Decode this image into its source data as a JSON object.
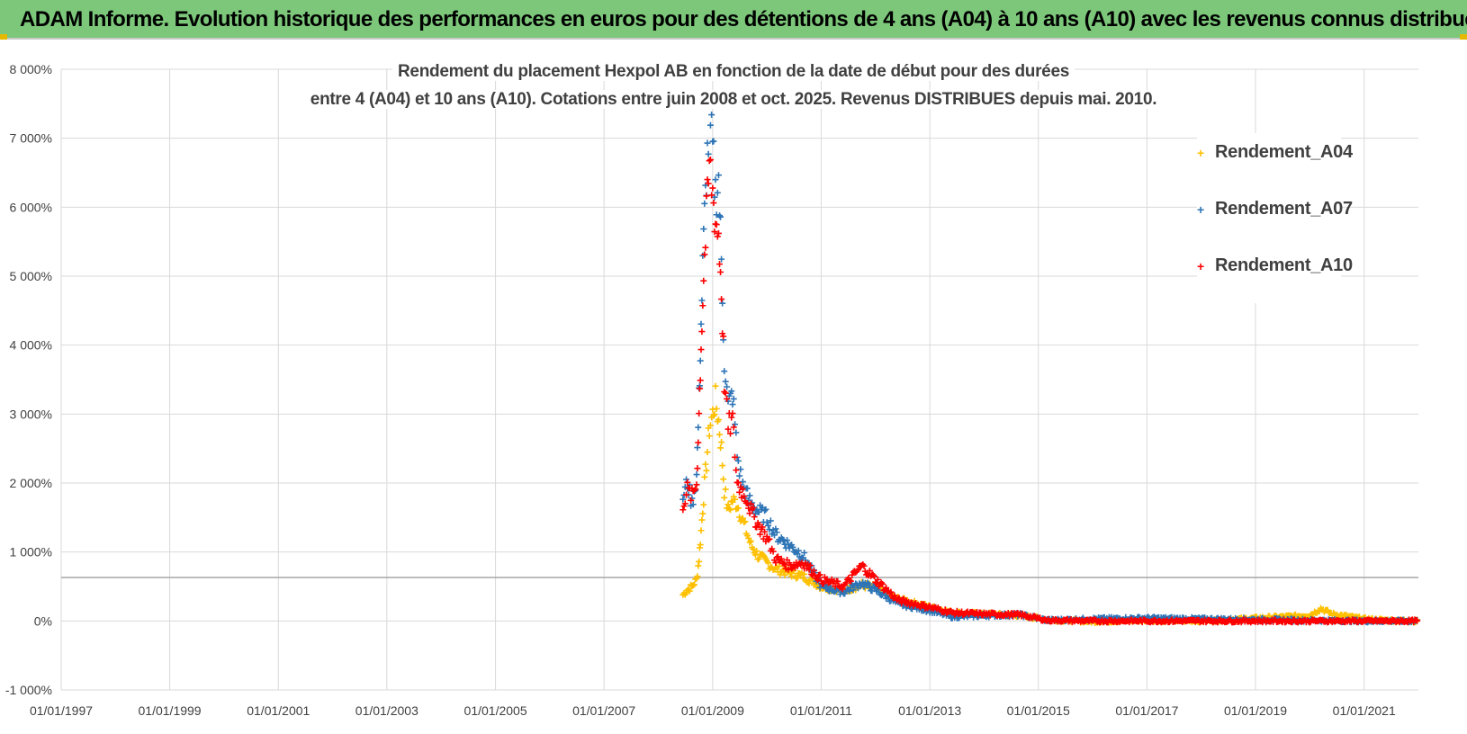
{
  "banner": {
    "title": "ADAM Informe. Evolution historique des performances en euros pour des détentions de 4 ans (A04) à 10 ans (A10) avec les revenus connus distribués"
  },
  "chart_data": {
    "type": "scatter",
    "title_line1": "Rendement du placement Hexpol AB en fonction de la date de début pour des durées",
    "title_line2": "entre 4 (A04) et 10 ans (A10). Cotations entre juin 2008 et oct. 2025. Revenus DISTRIBUES depuis mai. 2010.",
    "xlim": [
      "1997-01-01",
      "2022-01-01"
    ],
    "ylim": [
      -1000,
      8000
    ],
    "y_ticks": [
      -1000,
      0,
      1000,
      2000,
      3000,
      4000,
      5000,
      6000,
      7000,
      8000
    ],
    "y_tick_labels": [
      "-1 000%",
      "0%",
      "1 000%",
      "2 000%",
      "3 000%",
      "4 000%",
      "5 000%",
      "6 000%",
      "7 000%",
      "8 000%"
    ],
    "x_tick_labels": [
      "01/01/1997",
      "01/01/1999",
      "01/01/2001",
      "01/01/2003",
      "01/01/2005",
      "01/01/2007",
      "01/01/2009",
      "01/01/2011",
      "01/01/2013",
      "01/01/2015",
      "01/01/2017",
      "01/01/2019",
      "01/01/2021"
    ],
    "x_ticks": [
      "1997-01-01",
      "1999-01-01",
      "2001-01-01",
      "2003-01-01",
      "2005-01-01",
      "2007-01-01",
      "2009-01-01",
      "2011-01-01",
      "2013-01-01",
      "2015-01-01",
      "2017-01-01",
      "2019-01-01",
      "2021-01-01"
    ],
    "grid": true,
    "reference_line_y": 630,
    "legend_position": "top-right",
    "series": [
      {
        "name": "Rendement_A04",
        "color": "#ffc000",
        "marker": "plus",
        "points": [
          [
            "2008-06-15",
            380
          ],
          [
            "2008-07-15",
            450
          ],
          [
            "2008-08-15",
            500
          ],
          [
            "2008-09-15",
            600
          ],
          [
            "2008-10-01",
            900
          ],
          [
            "2008-10-15",
            1300
          ],
          [
            "2008-11-01",
            1800
          ],
          [
            "2008-11-20",
            2300
          ],
          [
            "2008-12-10",
            2800
          ],
          [
            "2009-01-01",
            3000
          ],
          [
            "2009-01-20",
            3200
          ],
          [
            "2009-02-10",
            2900
          ],
          [
            "2009-03-01",
            2500
          ],
          [
            "2009-03-20",
            1900
          ],
          [
            "2009-04-15",
            1600
          ],
          [
            "2009-05-15",
            1750
          ],
          [
            "2009-06-15",
            1700
          ],
          [
            "2009-07-15",
            1500
          ],
          [
            "2009-08-15",
            1300
          ],
          [
            "2009-09-15",
            1100
          ],
          [
            "2009-11-01",
            950
          ],
          [
            "2010-01-01",
            850
          ],
          [
            "2010-03-01",
            750
          ],
          [
            "2010-06-01",
            700
          ],
          [
            "2010-09-01",
            650
          ],
          [
            "2011-01-01",
            500
          ],
          [
            "2011-06-01",
            450
          ],
          [
            "2011-10-01",
            520
          ],
          [
            "2012-01-01",
            480
          ],
          [
            "2012-06-01",
            320
          ],
          [
            "2013-01-01",
            200
          ],
          [
            "2013-06-01",
            120
          ],
          [
            "2014-01-01",
            100
          ],
          [
            "2014-09-01",
            80
          ],
          [
            "2015-03-01",
            20
          ],
          [
            "2016-01-01",
            -10
          ],
          [
            "2017-01-01",
            10
          ],
          [
            "2018-01-01",
            0
          ],
          [
            "2019-01-01",
            40
          ],
          [
            "2019-07-01",
            60
          ],
          [
            "2020-01-01",
            80
          ],
          [
            "2020-03-15",
            180
          ],
          [
            "2020-06-01",
            100
          ],
          [
            "2021-01-01",
            30
          ],
          [
            "2021-06-01",
            10
          ],
          [
            "2022-01-01",
            0
          ]
        ]
      },
      {
        "name": "Rendement_A07",
        "color": "#2e75b6",
        "marker": "plus",
        "points": [
          [
            "2008-06-15",
            1800
          ],
          [
            "2008-07-15",
            2000
          ],
          [
            "2008-08-15",
            1700
          ],
          [
            "2008-09-15",
            2100
          ],
          [
            "2008-10-01",
            3200
          ],
          [
            "2008-10-15",
            4300
          ],
          [
            "2008-11-01",
            5500
          ],
          [
            "2008-11-20",
            6500
          ],
          [
            "2008-12-10",
            7200
          ],
          [
            "2009-01-01",
            6800
          ],
          [
            "2009-01-20",
            6200
          ],
          [
            "2009-02-10",
            6400
          ],
          [
            "2009-03-01",
            5200
          ],
          [
            "2009-03-20",
            3800
          ],
          [
            "2009-04-15",
            3100
          ],
          [
            "2009-05-15",
            3300
          ],
          [
            "2009-06-15",
            2400
          ],
          [
            "2009-07-15",
            2000
          ],
          [
            "2009-08-15",
            1850
          ],
          [
            "2009-09-15",
            1700
          ],
          [
            "2009-11-01",
            1600
          ],
          [
            "2010-01-01",
            1500
          ],
          [
            "2010-03-01",
            1250
          ],
          [
            "2010-06-01",
            1100
          ],
          [
            "2010-09-01",
            950
          ],
          [
            "2011-01-01",
            500
          ],
          [
            "2011-06-01",
            420
          ],
          [
            "2011-10-01",
            550
          ],
          [
            "2012-01-01",
            450
          ],
          [
            "2012-06-01",
            250
          ],
          [
            "2013-01-01",
            150
          ],
          [
            "2013-06-01",
            60
          ],
          [
            "2014-01-01",
            80
          ],
          [
            "2014-09-01",
            90
          ],
          [
            "2015-03-01",
            10
          ],
          [
            "2016-01-01",
            30
          ],
          [
            "2017-01-01",
            40
          ],
          [
            "2018-01-01",
            30
          ],
          [
            "2019-01-01",
            20
          ],
          [
            "2020-01-01",
            10
          ],
          [
            "2021-01-01",
            0
          ],
          [
            "2022-01-01",
            0
          ]
        ]
      },
      {
        "name": "Rendement_A10",
        "color": "#ff0000",
        "marker": "plus",
        "points": [
          [
            "2008-06-15",
            1700
          ],
          [
            "2008-07-15",
            1900
          ],
          [
            "2008-08-15",
            1800
          ],
          [
            "2008-09-15",
            2000
          ],
          [
            "2008-10-01",
            3000
          ],
          [
            "2008-10-15",
            4000
          ],
          [
            "2008-11-01",
            5000
          ],
          [
            "2008-11-20",
            5800
          ],
          [
            "2008-12-10",
            6600
          ],
          [
            "2009-01-01",
            6200
          ],
          [
            "2009-01-20",
            5800
          ],
          [
            "2009-02-10",
            5600
          ],
          [
            "2009-03-01",
            4800
          ],
          [
            "2009-03-20",
            3500
          ],
          [
            "2009-04-15",
            2800
          ],
          [
            "2009-05-15",
            2900
          ],
          [
            "2009-06-15",
            2000
          ],
          [
            "2009-07-15",
            1900
          ],
          [
            "2009-08-15",
            1800
          ],
          [
            "2009-09-15",
            1600
          ],
          [
            "2009-11-01",
            1400
          ],
          [
            "2010-01-01",
            1200
          ],
          [
            "2010-03-01",
            900
          ],
          [
            "2010-06-01",
            800
          ],
          [
            "2010-09-01",
            850
          ],
          [
            "2011-01-01",
            600
          ],
          [
            "2011-06-01",
            500
          ],
          [
            "2011-10-01",
            800
          ],
          [
            "2012-01-01",
            600
          ],
          [
            "2012-06-01",
            300
          ],
          [
            "2013-01-01",
            200
          ],
          [
            "2013-06-01",
            120
          ],
          [
            "2014-01-01",
            100
          ],
          [
            "2014-09-01",
            90
          ],
          [
            "2015-03-01",
            10
          ],
          [
            "2016-01-01",
            0
          ],
          [
            "2017-01-01",
            0
          ],
          [
            "2018-01-01",
            0
          ],
          [
            "2019-01-01",
            0
          ],
          [
            "2020-01-01",
            0
          ],
          [
            "2021-01-01",
            0
          ],
          [
            "2022-01-01",
            0
          ]
        ]
      }
    ]
  }
}
